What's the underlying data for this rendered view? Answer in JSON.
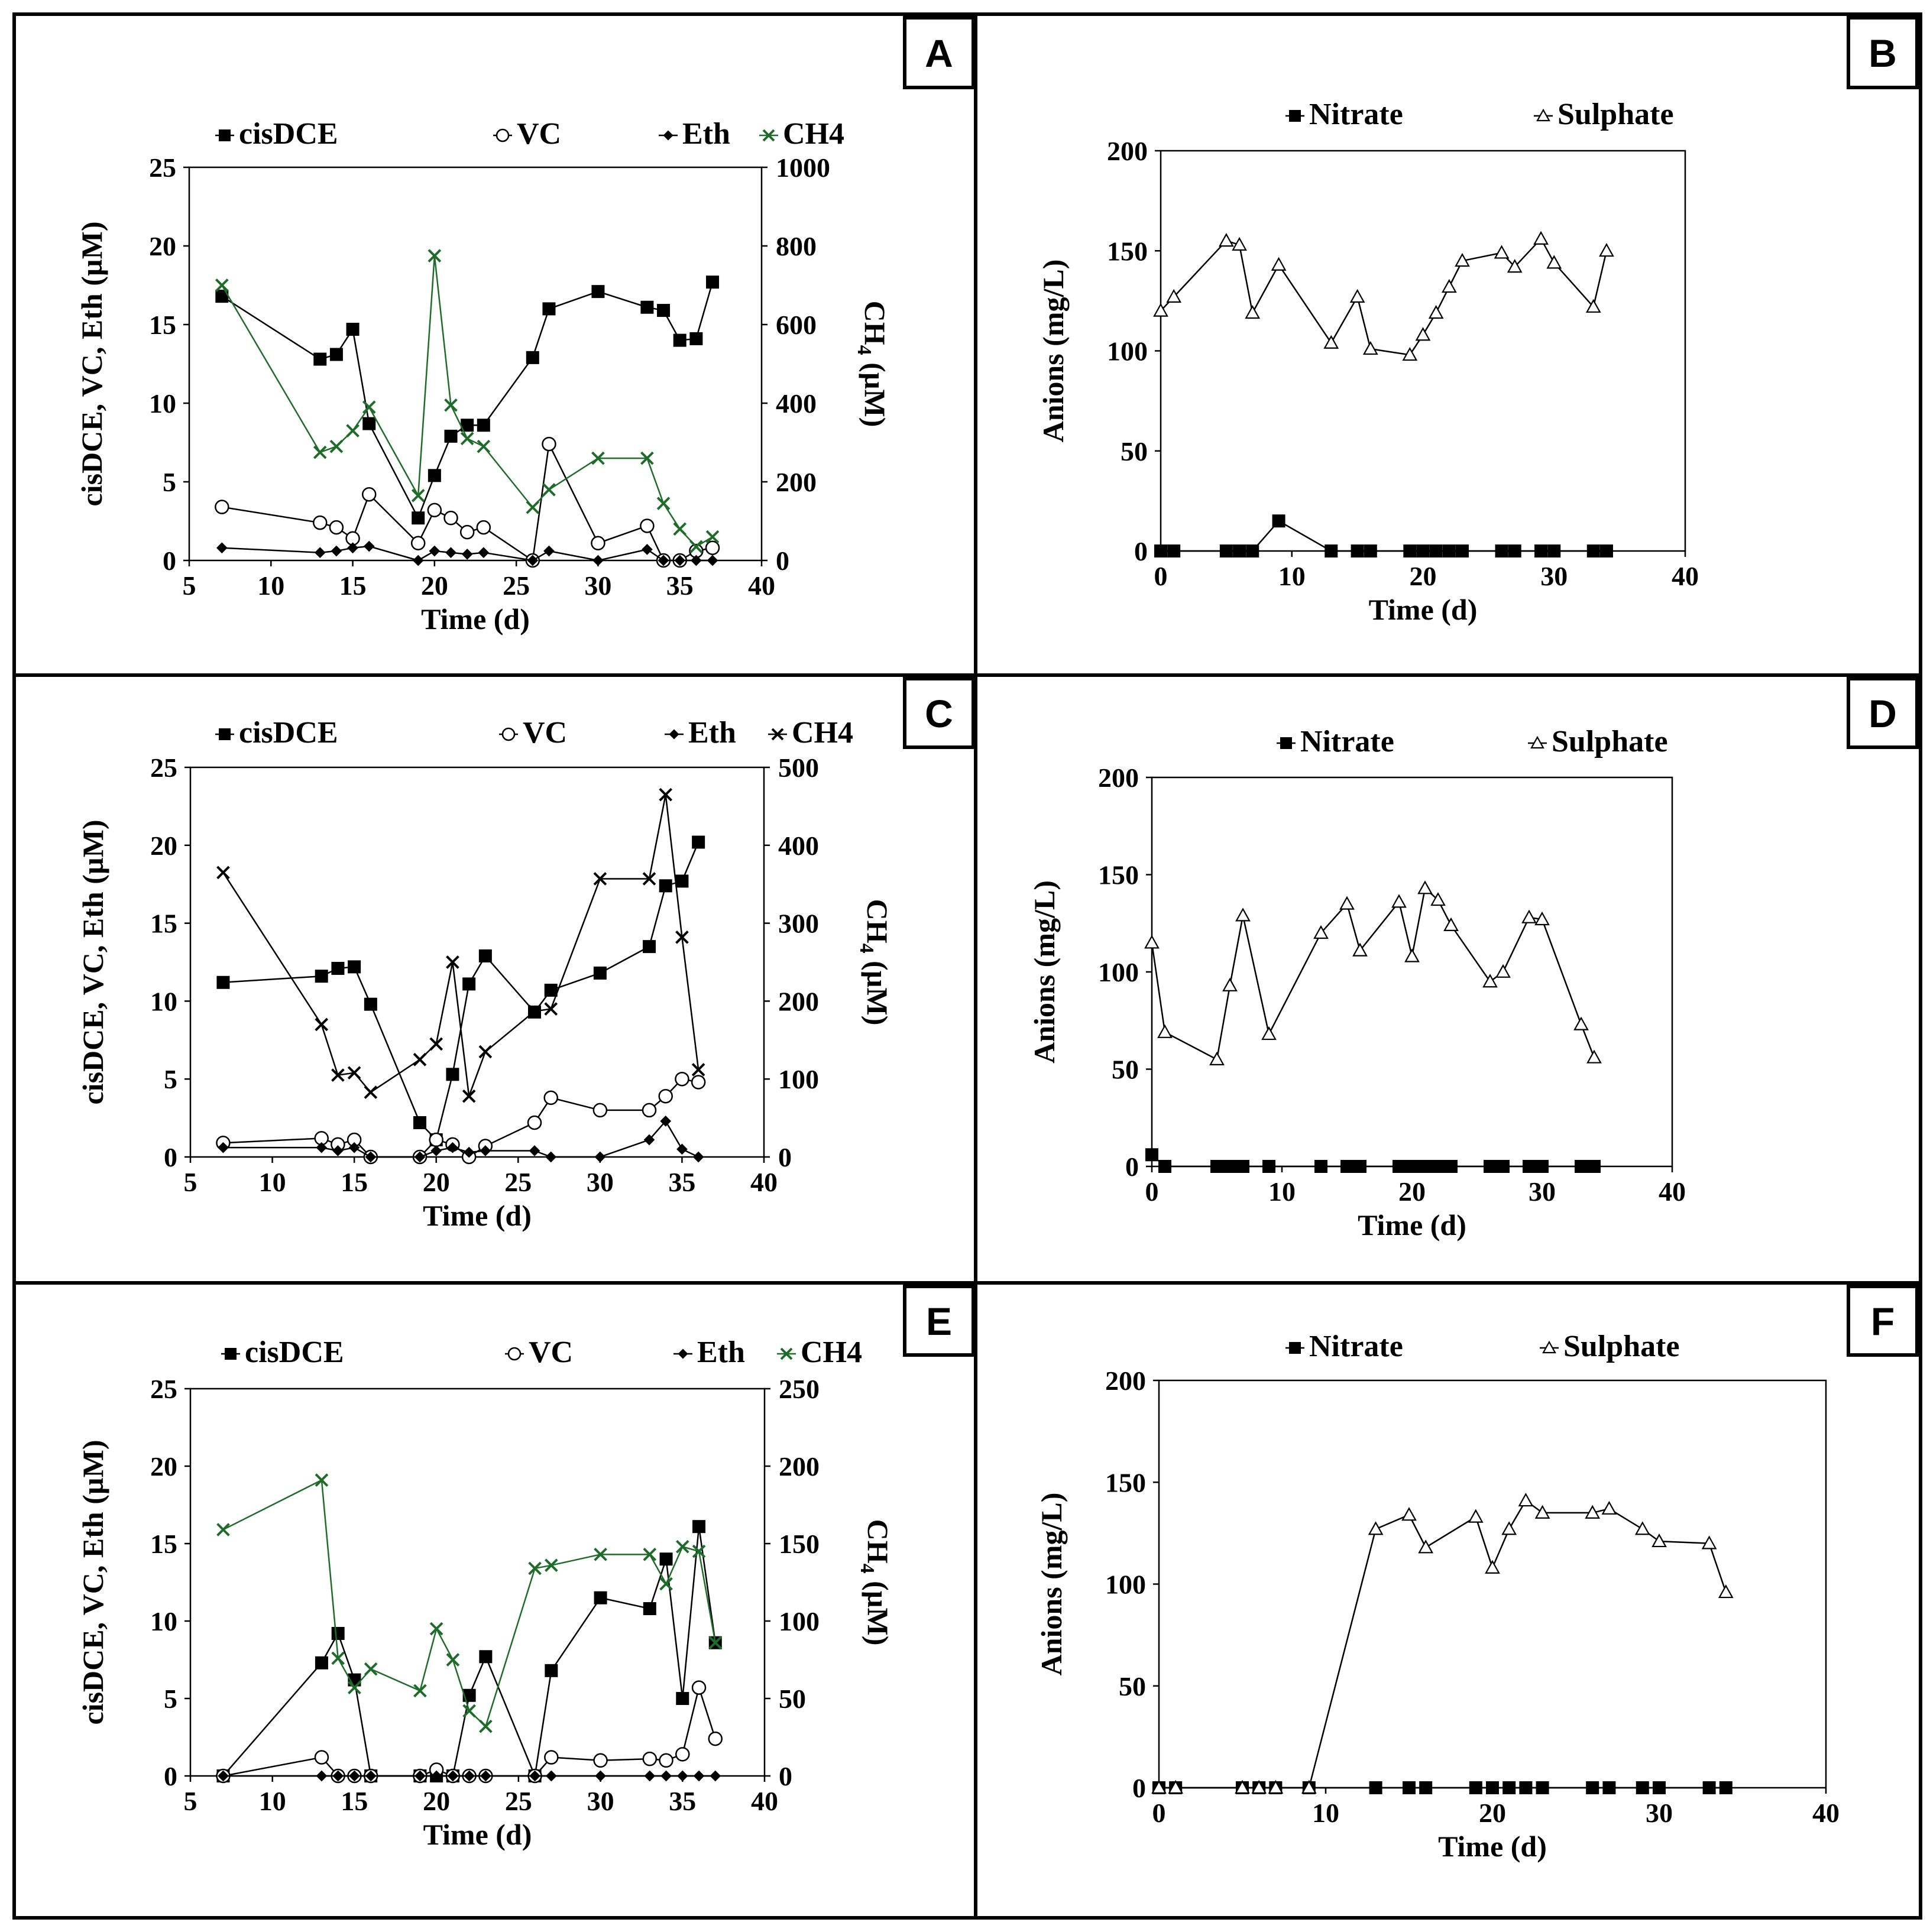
{
  "chart_data": [
    {
      "id": "A",
      "type": "line",
      "panel_label": "A",
      "xlabel": "Time (d)",
      "ylabel": "cisDCE, VC, Eth (µM)",
      "y2label_main": "CH",
      "y2label_sub": "4",
      "y2label_unit": " (µM)",
      "xlim": [
        5,
        40
      ],
      "xticks": [
        5,
        10,
        15,
        20,
        25,
        30,
        35,
        40
      ],
      "ylim": [
        0,
        25
      ],
      "yticks": [
        0,
        5,
        10,
        15,
        20,
        25
      ],
      "y2lim": [
        0,
        1000
      ],
      "y2ticks": [
        0,
        200,
        400,
        600,
        800,
        1000
      ],
      "series": [
        {
          "name": "cisDCE",
          "marker": "square",
          "color": "#000000",
          "axis": "left",
          "x": [
            7,
            13,
            14,
            15,
            16,
            19,
            20,
            21,
            22,
            23,
            26,
            27,
            30,
            33,
            34,
            35,
            36,
            37
          ],
          "values": [
            16.8,
            12.8,
            13.1,
            14.7,
            8.7,
            2.7,
            5.4,
            7.9,
            8.6,
            8.6,
            12.9,
            16.0,
            17.1,
            16.1,
            15.9,
            14.0,
            14.1,
            17.7
          ]
        },
        {
          "name": "VC",
          "marker": "circle",
          "color": "#000000",
          "axis": "left",
          "x": [
            7,
            13,
            14,
            15,
            16,
            19,
            20,
            21,
            22,
            23,
            26,
            27,
            30,
            33,
            34,
            35,
            36,
            37
          ],
          "values": [
            3.4,
            2.4,
            2.1,
            1.4,
            4.2,
            1.1,
            3.2,
            2.7,
            1.8,
            2.1,
            0.0,
            7.4,
            1.1,
            2.2,
            0.0,
            0.0,
            0.6,
            0.8
          ]
        },
        {
          "name": "Eth",
          "marker": "diamond",
          "color": "#000000",
          "axis": "left",
          "x": [
            7,
            13,
            14,
            15,
            16,
            19,
            20,
            21,
            22,
            23,
            26,
            27,
            30,
            33,
            34,
            35,
            36,
            37
          ],
          "values": [
            0.8,
            0.5,
            0.6,
            0.8,
            0.9,
            0.0,
            0.6,
            0.5,
            0.4,
            0.5,
            0.0,
            0.6,
            0.0,
            0.7,
            0.0,
            0.0,
            0.0,
            0.0
          ]
        },
        {
          "name": "CH4",
          "marker": "x",
          "color": "#1e6b2a",
          "axis": "right",
          "x": [
            7,
            13,
            14,
            15,
            16,
            19,
            20,
            21,
            22,
            23,
            26,
            27,
            30,
            33,
            34,
            35,
            36,
            37
          ],
          "values": [
            700,
            275,
            290,
            330,
            390,
            165,
            775,
            395,
            310,
            290,
            135,
            180,
            260,
            260,
            145,
            80,
            35,
            60
          ]
        }
      ]
    },
    {
      "id": "B",
      "type": "line",
      "panel_label": "B",
      "xlabel": "Time (d)",
      "ylabel": "Anions (mg/L)",
      "xlim": [
        0,
        40
      ],
      "xticks": [
        0,
        10,
        20,
        30,
        40
      ],
      "ylim": [
        0,
        200
      ],
      "yticks": [
        0,
        50,
        100,
        150,
        200
      ],
      "series": [
        {
          "name": "Nitrate",
          "marker": "square",
          "color": "#000000",
          "axis": "left",
          "x": [
            0,
            1,
            5,
            6,
            7,
            9,
            13,
            15,
            16,
            19,
            20,
            21,
            22,
            23,
            26,
            27,
            29,
            30,
            33,
            34
          ],
          "values": [
            0,
            0,
            0,
            0,
            0,
            15,
            0,
            0,
            0,
            0,
            0,
            0,
            0,
            0,
            0,
            0,
            0,
            0,
            0,
            0
          ]
        },
        {
          "name": "Sulphate",
          "marker": "triangle",
          "color": "#000000",
          "axis": "left",
          "x": [
            0,
            1,
            5,
            6,
            7,
            9,
            13,
            15,
            16,
            19,
            20,
            21,
            22,
            23,
            26,
            27,
            29,
            30,
            33,
            34
          ],
          "values": [
            120,
            127,
            155,
            153,
            119,
            143,
            104,
            127,
            101,
            98,
            108,
            119,
            132,
            145,
            149,
            142,
            156,
            144,
            122,
            150
          ]
        }
      ]
    },
    {
      "id": "C",
      "type": "line",
      "panel_label": "C",
      "xlabel": "Time (d)",
      "ylabel": "cisDCE, VC, Eth (µM)",
      "y2label_main": "CH",
      "y2label_sub": "4",
      "y2label_unit": " (µM)",
      "xlim": [
        5,
        40
      ],
      "xticks": [
        5,
        10,
        15,
        20,
        25,
        30,
        35,
        40
      ],
      "ylim": [
        0,
        25
      ],
      "yticks": [
        0,
        5,
        10,
        15,
        20,
        25
      ],
      "y2lim": [
        0,
        500
      ],
      "y2ticks": [
        0,
        100,
        200,
        300,
        400,
        500
      ],
      "series": [
        {
          "name": "cisDCE",
          "marker": "square",
          "color": "#000000",
          "axis": "left",
          "x": [
            7,
            13,
            14,
            15,
            16,
            19,
            20,
            21,
            22,
            23,
            26,
            27,
            30,
            33,
            34,
            35,
            36
          ],
          "values": [
            11.2,
            11.6,
            12.1,
            12.2,
            9.8,
            2.2,
            1.1,
            5.3,
            11.1,
            12.9,
            9.3,
            10.7,
            11.8,
            13.5,
            17.4,
            17.7,
            20.2
          ]
        },
        {
          "name": "VC",
          "marker": "circle",
          "color": "#000000",
          "axis": "left",
          "x": [
            7,
            13,
            14,
            15,
            16,
            19,
            20,
            21,
            22,
            23,
            26,
            27,
            30,
            33,
            34,
            35,
            36
          ],
          "values": [
            0.9,
            1.2,
            0.8,
            1.1,
            0.0,
            0.0,
            1.1,
            0.8,
            0.0,
            0.7,
            2.2,
            3.8,
            3.0,
            3.0,
            3.9,
            5.0,
            4.8
          ]
        },
        {
          "name": "Eth",
          "marker": "diamond",
          "color": "#000000",
          "axis": "left",
          "x": [
            7,
            13,
            14,
            15,
            16,
            19,
            20,
            21,
            22,
            23,
            26,
            27,
            30,
            33,
            34,
            35,
            36
          ],
          "values": [
            0.6,
            0.6,
            0.4,
            0.6,
            0.0,
            0.0,
            0.4,
            0.6,
            0.3,
            0.4,
            0.4,
            0.0,
            0.0,
            1.1,
            2.3,
            0.5,
            0.0
          ]
        },
        {
          "name": "CH4",
          "marker": "x",
          "color": "#000000",
          "axis": "right",
          "x": [
            7,
            13,
            14,
            15,
            16,
            19,
            20,
            21,
            22,
            23,
            26,
            27,
            30,
            33,
            34,
            35,
            36
          ],
          "values": [
            365,
            170,
            105,
            108,
            83,
            125,
            145,
            250,
            78,
            135,
            187,
            190,
            357,
            357,
            465,
            282,
            112
          ]
        }
      ]
    },
    {
      "id": "D",
      "type": "line",
      "panel_label": "D",
      "xlabel": "Time (d)",
      "ylabel": "Anions (mg/L)",
      "xlim": [
        0,
        40
      ],
      "xticks": [
        0,
        10,
        20,
        30,
        40
      ],
      "ylim": [
        0,
        200
      ],
      "yticks": [
        0,
        50,
        100,
        150,
        200
      ],
      "series": [
        {
          "name": "Nitrate",
          "marker": "square",
          "color": "#000000",
          "axis": "left",
          "x": [
            0,
            1,
            5,
            6,
            7,
            9,
            13,
            15,
            16,
            19,
            20,
            21,
            22,
            23,
            26,
            27,
            29,
            30,
            33,
            34
          ],
          "values": [
            6,
            0,
            0,
            0,
            0,
            0,
            0,
            0,
            0,
            0,
            0,
            0,
            0,
            0,
            0,
            0,
            0,
            0,
            0,
            0
          ]
        },
        {
          "name": "Sulphate",
          "marker": "triangle",
          "color": "#000000",
          "axis": "left",
          "x": [
            0,
            1,
            5,
            6,
            7,
            9,
            13,
            15,
            16,
            19,
            20,
            21,
            22,
            23,
            26,
            27,
            29,
            30,
            33,
            34
          ],
          "values": [
            115,
            69,
            55,
            93,
            129,
            68,
            120,
            135,
            111,
            136,
            108,
            143,
            137,
            124,
            95,
            100,
            128,
            127,
            73,
            56
          ]
        }
      ]
    },
    {
      "id": "E",
      "type": "line",
      "panel_label": "E",
      "xlabel": "Time (d)",
      "ylabel": "cisDCE, VC, Eth (µM)",
      "y2label_main": "CH",
      "y2label_sub": "4",
      "y2label_unit": " (µM)",
      "xlim": [
        5,
        40
      ],
      "xticks": [
        5,
        10,
        15,
        20,
        25,
        30,
        35,
        40
      ],
      "ylim": [
        0,
        25
      ],
      "yticks": [
        0,
        5,
        10,
        15,
        20,
        25
      ],
      "y2lim": [
        0,
        250
      ],
      "y2ticks": [
        0,
        50,
        100,
        150,
        200,
        250
      ],
      "series": [
        {
          "name": "cisDCE",
          "marker": "square",
          "color": "#000000",
          "axis": "left",
          "x": [
            7,
            13,
            14,
            15,
            16,
            19,
            20,
            21,
            22,
            23,
            26,
            27,
            30,
            33,
            34,
            35,
            36,
            37
          ],
          "values": [
            0.0,
            7.3,
            9.2,
            6.2,
            0.0,
            0.0,
            0.0,
            0.0,
            5.2,
            7.7,
            0.0,
            6.8,
            11.5,
            10.8,
            14.0,
            5.0,
            16.1,
            8.6
          ]
        },
        {
          "name": "VC",
          "marker": "circle",
          "color": "#000000",
          "axis": "left",
          "x": [
            7,
            13,
            14,
            15,
            16,
            19,
            20,
            21,
            22,
            23,
            26,
            27,
            30,
            33,
            34,
            35,
            36,
            37
          ],
          "values": [
            0.0,
            1.2,
            0.0,
            0.0,
            0.0,
            0.0,
            0.4,
            0.0,
            0.0,
            0.0,
            0.0,
            1.2,
            1.0,
            1.1,
            1.0,
            1.4,
            5.7,
            2.4
          ]
        },
        {
          "name": "Eth",
          "marker": "diamond",
          "color": "#000000",
          "axis": "left",
          "x": [
            7,
            13,
            14,
            15,
            16,
            19,
            20,
            21,
            22,
            23,
            26,
            27,
            30,
            33,
            34,
            35,
            36,
            37
          ],
          "values": [
            0,
            0,
            0,
            0,
            0,
            0,
            0,
            0,
            0,
            0,
            0,
            0,
            0,
            0,
            0,
            0,
            0,
            0
          ]
        },
        {
          "name": "CH4",
          "marker": "x",
          "color": "#1e6b2a",
          "axis": "right",
          "x": [
            7,
            13,
            14,
            15,
            16,
            19,
            20,
            21,
            22,
            23,
            26,
            27,
            30,
            33,
            34,
            35,
            36,
            37
          ],
          "values": [
            159,
            191,
            76,
            57,
            69,
            55,
            95,
            75,
            42,
            32,
            134,
            136,
            143,
            143,
            124,
            148,
            145,
            86
          ]
        }
      ]
    },
    {
      "id": "F",
      "type": "line",
      "panel_label": "F",
      "xlabel": "Time (d)",
      "ylabel": "Anions (mg/L)",
      "xlim": [
        0,
        40
      ],
      "xticks": [
        0,
        10,
        20,
        30,
        40
      ],
      "ylim": [
        0,
        200
      ],
      "yticks": [
        0,
        50,
        100,
        150,
        200
      ],
      "series": [
        {
          "name": "Nitrate",
          "marker": "square",
          "color": "#000000",
          "axis": "left",
          "x": [
            0,
            1,
            5,
            6,
            7,
            9,
            13,
            15,
            16,
            19,
            20,
            21,
            22,
            23,
            26,
            27,
            29,
            30,
            33,
            34
          ],
          "values": [
            0,
            0,
            0,
            0,
            0,
            0,
            0,
            0,
            0,
            0,
            0,
            0,
            0,
            0,
            0,
            0,
            0,
            0,
            0,
            0
          ]
        },
        {
          "name": "Sulphate",
          "marker": "triangle",
          "color": "#000000",
          "axis": "left",
          "x": [
            0,
            1,
            5,
            6,
            7,
            9,
            13,
            15,
            16,
            19,
            20,
            21,
            22,
            23,
            26,
            27,
            29,
            30,
            33,
            34
          ],
          "values": [
            0,
            0,
            0,
            0,
            0,
            0,
            127,
            134,
            118,
            133,
            108,
            127,
            141,
            135,
            135,
            137,
            127,
            121,
            120,
            96
          ]
        }
      ]
    }
  ]
}
